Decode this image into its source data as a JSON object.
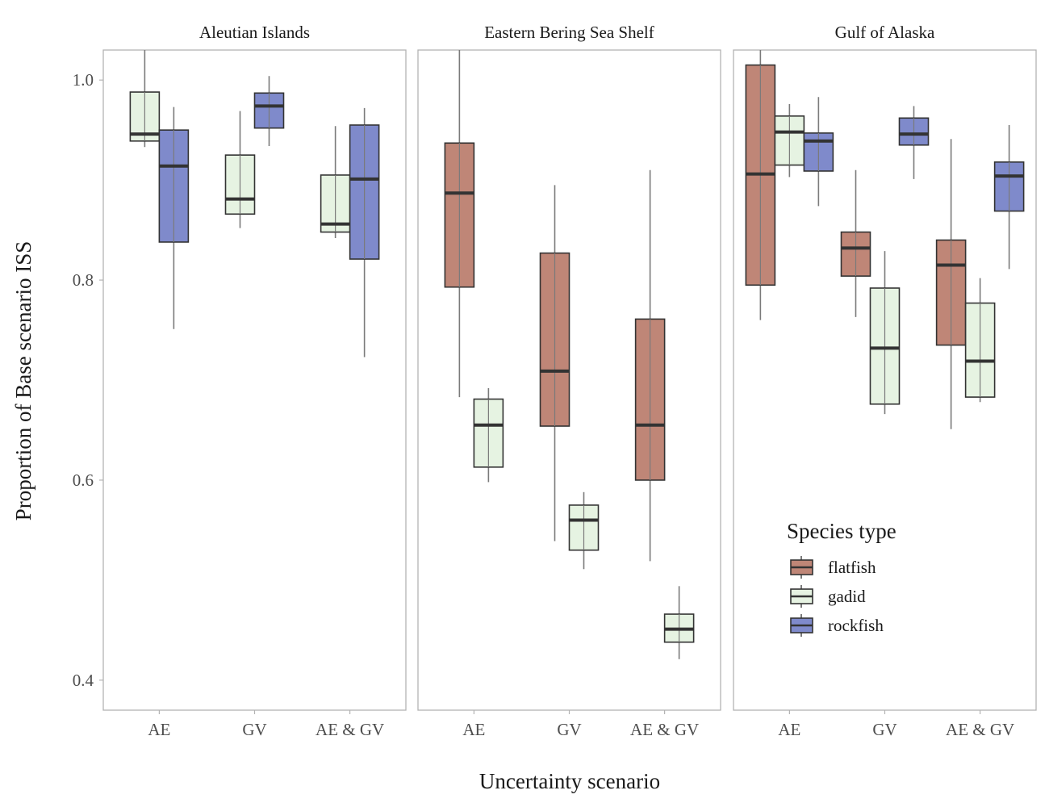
{
  "chart_data": {
    "type": "boxplot",
    "xlabel": "Uncertainty scenario",
    "ylabel": "Proportion of Base scenario ISS",
    "ylim": [
      0.37,
      1.03
    ],
    "yticks": [
      "0.4",
      "0.6",
      "0.8",
      "1.0"
    ],
    "categories": [
      "AE",
      "GV",
      "AE & GV"
    ],
    "legend": {
      "title": "Species type",
      "position": "inside-bottom-right",
      "items": [
        {
          "name": "flatfish",
          "color": "#bf8677"
        },
        {
          "name": "gadid",
          "color": "#e6f3e2"
        },
        {
          "name": "rockfish",
          "color": "#7f8acb"
        }
      ]
    },
    "grid": false,
    "panels": [
      {
        "title": "Aleutian Islands",
        "groups": [
          {
            "category": "AE",
            "boxes": [
              {
                "series": "gadid",
                "whisker_low": 0.933,
                "q1": 0.939,
                "median": 0.946,
                "q3": 0.988,
                "whisker_high": 1.03
              },
              {
                "series": "rockfish",
                "whisker_low": 0.751,
                "q1": 0.838,
                "median": 0.914,
                "q3": 0.95,
                "whisker_high": 0.973
              }
            ]
          },
          {
            "category": "GV",
            "boxes": [
              {
                "series": "gadid",
                "whisker_low": 0.852,
                "q1": 0.866,
                "median": 0.881,
                "q3": 0.925,
                "whisker_high": 0.969
              },
              {
                "series": "rockfish",
                "whisker_low": 0.934,
                "q1": 0.952,
                "median": 0.974,
                "q3": 0.987,
                "whisker_high": 1.004
              }
            ]
          },
          {
            "category": "AE & GV",
            "boxes": [
              {
                "series": "gadid",
                "whisker_low": 0.842,
                "q1": 0.848,
                "median": 0.856,
                "q3": 0.905,
                "whisker_high": 0.954
              },
              {
                "series": "rockfish",
                "whisker_low": 0.723,
                "q1": 0.821,
                "median": 0.901,
                "q3": 0.955,
                "whisker_high": 0.972
              }
            ]
          }
        ]
      },
      {
        "title": "Eastern Bering Sea Shelf",
        "groups": [
          {
            "category": "AE",
            "boxes": [
              {
                "series": "flatfish",
                "whisker_low": 0.683,
                "q1": 0.793,
                "median": 0.887,
                "q3": 0.937,
                "whisker_high": 1.03
              },
              {
                "series": "gadid",
                "whisker_low": 0.598,
                "q1": 0.613,
                "median": 0.655,
                "q3": 0.681,
                "whisker_high": 0.692
              }
            ]
          },
          {
            "category": "GV",
            "boxes": [
              {
                "series": "flatfish",
                "whisker_low": 0.539,
                "q1": 0.654,
                "median": 0.709,
                "q3": 0.827,
                "whisker_high": 0.895
              },
              {
                "series": "gadid",
                "whisker_low": 0.511,
                "q1": 0.53,
                "median": 0.56,
                "q3": 0.575,
                "whisker_high": 0.588
              }
            ]
          },
          {
            "category": "AE & GV",
            "boxes": [
              {
                "series": "flatfish",
                "whisker_low": 0.519,
                "q1": 0.6,
                "median": 0.655,
                "q3": 0.761,
                "whisker_high": 0.91
              },
              {
                "series": "gadid",
                "whisker_low": 0.421,
                "q1": 0.438,
                "median": 0.451,
                "q3": 0.466,
                "whisker_high": 0.494
              }
            ]
          }
        ]
      },
      {
        "title": "Gulf of Alaska",
        "groups": [
          {
            "category": "AE",
            "boxes": [
              {
                "series": "flatfish",
                "whisker_low": 0.76,
                "q1": 0.795,
                "median": 0.906,
                "q3": 1.015,
                "whisker_high": 1.03
              },
              {
                "series": "gadid",
                "whisker_low": 0.903,
                "q1": 0.915,
                "median": 0.948,
                "q3": 0.964,
                "whisker_high": 0.976
              },
              {
                "series": "rockfish",
                "whisker_low": 0.874,
                "q1": 0.909,
                "median": 0.939,
                "q3": 0.947,
                "whisker_high": 0.983
              }
            ]
          },
          {
            "category": "GV",
            "boxes": [
              {
                "series": "flatfish",
                "whisker_low": 0.763,
                "q1": 0.804,
                "median": 0.832,
                "q3": 0.848,
                "whisker_high": 0.91
              },
              {
                "series": "gadid",
                "whisker_low": 0.666,
                "q1": 0.676,
                "median": 0.732,
                "q3": 0.792,
                "whisker_high": 0.829
              },
              {
                "series": "rockfish",
                "whisker_low": 0.901,
                "q1": 0.935,
                "median": 0.946,
                "q3": 0.962,
                "whisker_high": 0.974
              }
            ]
          },
          {
            "category": "AE & GV",
            "boxes": [
              {
                "series": "flatfish",
                "whisker_low": 0.651,
                "q1": 0.735,
                "median": 0.815,
                "q3": 0.84,
                "whisker_high": 0.941
              },
              {
                "series": "gadid",
                "whisker_low": 0.678,
                "q1": 0.683,
                "median": 0.719,
                "q3": 0.777,
                "whisker_high": 0.802
              },
              {
                "series": "rockfish",
                "whisker_low": 0.811,
                "q1": 0.869,
                "median": 0.904,
                "q3": 0.918,
                "whisker_high": 0.955
              }
            ]
          }
        ]
      }
    ]
  }
}
